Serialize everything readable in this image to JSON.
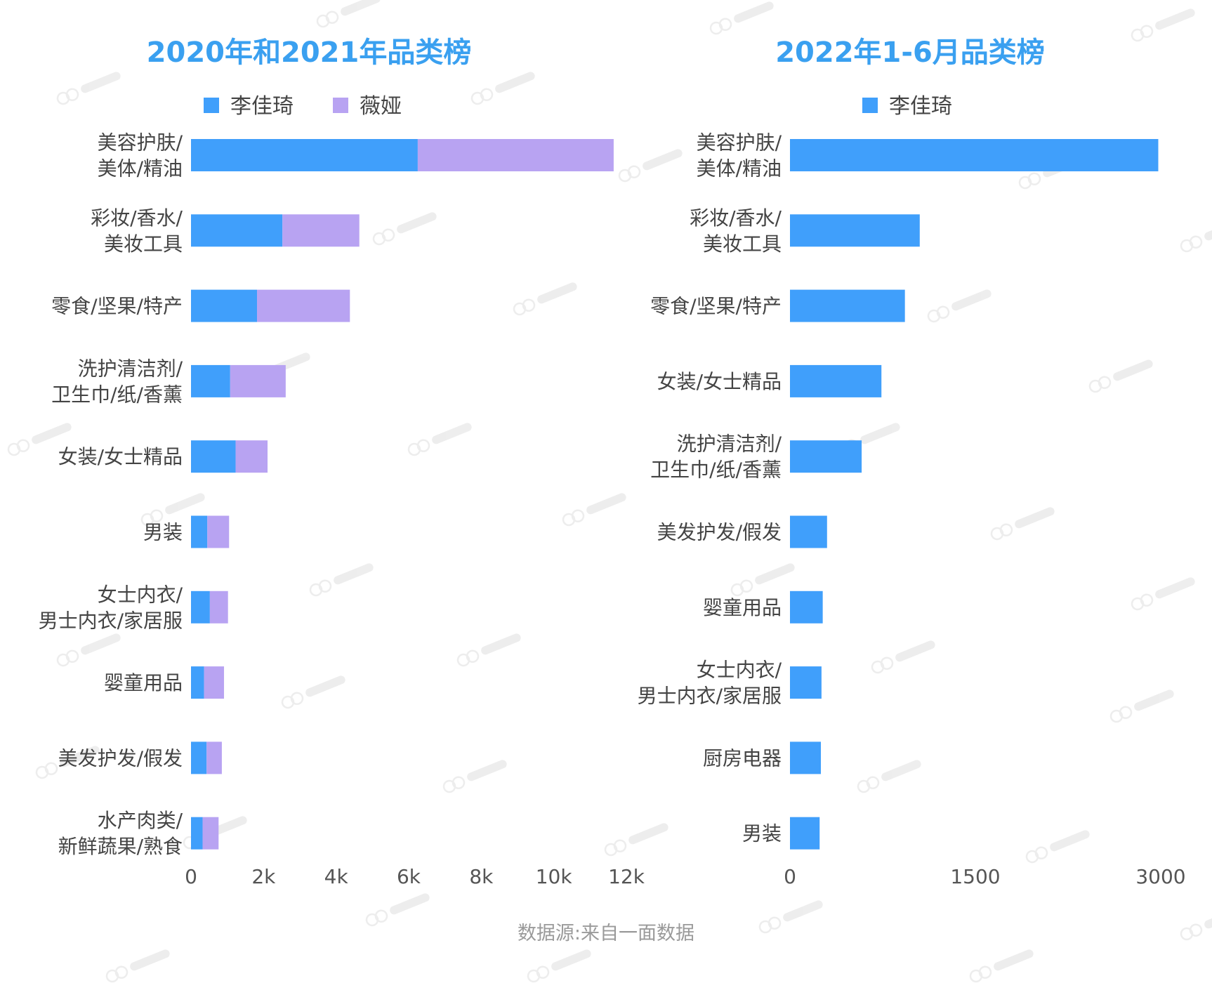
{
  "colors": {
    "li": "#409ffb",
    "wei": "#b8a3f2",
    "title": "#3aa0f0"
  },
  "source": "数据源:来自一面数据",
  "chart_data": [
    {
      "type": "bar",
      "orientation": "horizontal",
      "stacked": true,
      "title": "2020年和2021年品类榜",
      "categories": [
        [
          "美容护肤/",
          "美体/精油"
        ],
        [
          "彩妆/香水/",
          "美妆工具"
        ],
        [
          "零食/坚果/特产"
        ],
        [
          "洗护清洁剂/",
          "卫生巾/纸/香薰"
        ],
        [
          "女装/女士精品"
        ],
        [
          "男装"
        ],
        [
          "女士内衣/",
          "男士内衣/家居服"
        ],
        [
          "婴童用品"
        ],
        [
          "美发护发/假发"
        ],
        [
          "水产肉类/",
          "新鲜蔬果/熟食"
        ]
      ],
      "series": [
        {
          "name": "李佳琦",
          "color": "#409ffb",
          "values": [
            6250,
            2520,
            1820,
            1080,
            1230,
            450,
            520,
            360,
            430,
            320
          ]
        },
        {
          "name": "薇娅",
          "color": "#b8a3f2",
          "values": [
            5400,
            2120,
            2560,
            1530,
            880,
            600,
            500,
            550,
            420,
            440
          ]
        }
      ],
      "xlim": [
        0,
        12000
      ],
      "xticks": [
        0,
        2000,
        4000,
        6000,
        8000,
        10000,
        12000
      ],
      "xtick_labels": [
        "0",
        "2k",
        "4k",
        "6k",
        "8k",
        "10k",
        "12k"
      ],
      "legend": "top"
    },
    {
      "type": "bar",
      "orientation": "horizontal",
      "title": "2022年1-6月品类榜",
      "categories": [
        [
          "美容护肤/",
          "美体/精油"
        ],
        [
          "彩妆/香水/",
          "美妆工具"
        ],
        [
          "零食/坚果/特产"
        ],
        [
          "女装/女士精品"
        ],
        [
          "洗护清洁剂/",
          "卫生巾/纸/香薰"
        ],
        [
          "美发护发/假发"
        ],
        [
          "婴童用品"
        ],
        [
          "女士内衣/",
          "男士内衣/家居服"
        ],
        [
          "厨房电器"
        ],
        [
          "男装"
        ]
      ],
      "series": [
        {
          "name": "李佳琦",
          "color": "#409ffb",
          "values": [
            2980,
            1050,
            930,
            740,
            580,
            300,
            265,
            255,
            250,
            240
          ]
        }
      ],
      "xlim": [
        0,
        3000
      ],
      "xticks": [
        0,
        1500,
        3000
      ],
      "xtick_labels": [
        "0",
        "1500",
        "3000"
      ],
      "legend": "top"
    }
  ]
}
